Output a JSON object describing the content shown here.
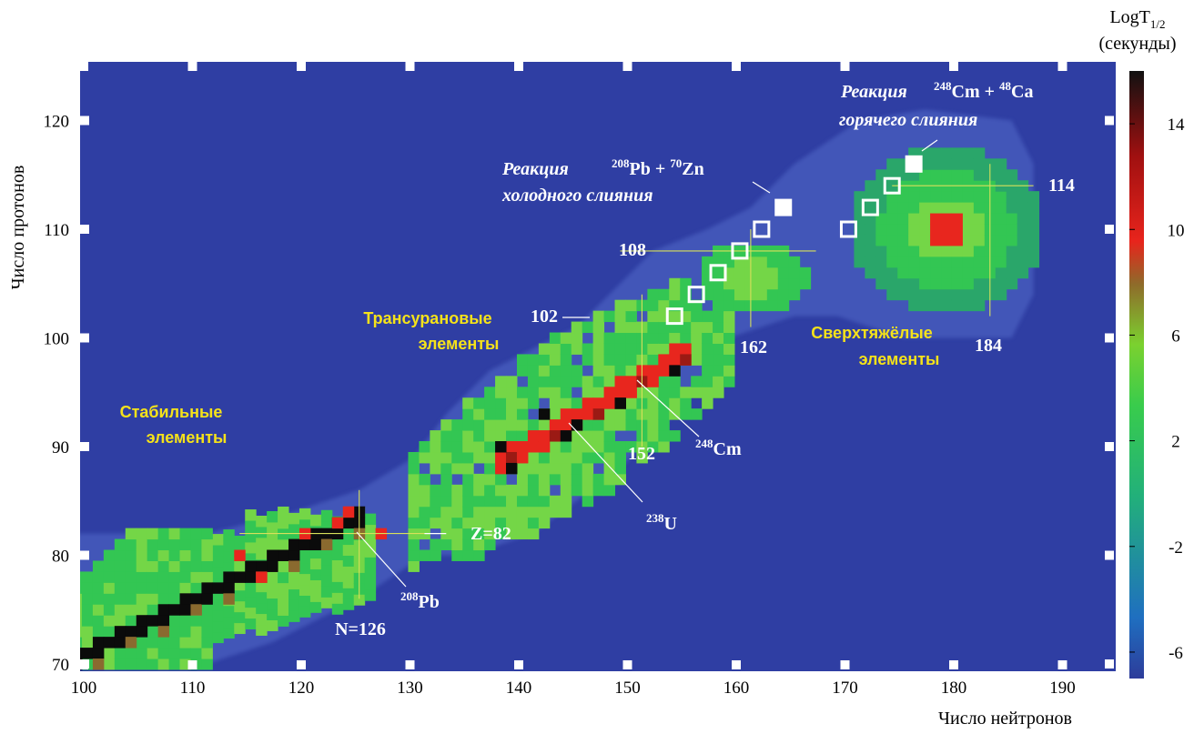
{
  "chart_data": {
    "type": "heatmap",
    "xlabel": "Число нейтронов",
    "ylabel": "Число протонов",
    "xlim": [
      100,
      196
    ],
    "ylim": [
      70,
      125
    ],
    "x_ticks": [
      "100",
      "110",
      "120",
      "130",
      "140",
      "150",
      "160",
      "170",
      "180",
      "190"
    ],
    "y_ticks": [
      "70",
      "80",
      "90",
      "100",
      "110",
      "120"
    ],
    "colorbar": {
      "title_main": "LogT",
      "title_sub": "1/2",
      "title_unit": "(секунды)",
      "range": [
        -7,
        16
      ],
      "ticks": [
        "-6",
        "-2",
        "2",
        "6",
        "10",
        "14"
      ],
      "colors": [
        "#2d3c9a",
        "#1f7fc4",
        "#22b07a",
        "#39cc4c",
        "#7bd12f",
        "#8f6a2a",
        "#e8241c",
        "#a01010",
        "#111111"
      ]
    },
    "colors": {
      "background": "#2f3ea3",
      "halo": "#4f66c6",
      "green": "#33c653",
      "light_green": "#74d647",
      "red": "#e8261e",
      "dark_red": "#9b1a14",
      "black": "#0b0b0b",
      "brown": "#8a6a2f",
      "annotation_yellow": "#f5e21a"
    },
    "regions": [
      {
        "name": "stable_band",
        "type": "band",
        "from": [
          100,
          72
        ],
        "to": [
          126,
          82
        ],
        "value": "2 to 6"
      },
      {
        "name": "transuranic_band",
        "type": "band",
        "from": [
          133,
          84
        ],
        "to": [
          160,
          104
        ],
        "value": "2 to 6"
      },
      {
        "name": "deformed_island",
        "type": "ellipse",
        "center": [
          162,
          106
        ],
        "value": "3 to 6"
      },
      {
        "name": "superheavy_island",
        "type": "ellipse",
        "center": [
          180,
          110
        ],
        "value": "4 to 10"
      }
    ],
    "cold_fusion_points": [
      [
        155,
        102
      ],
      [
        157,
        104
      ],
      [
        159,
        106
      ],
      [
        161,
        108
      ],
      [
        163,
        110
      ],
      [
        165,
        112
      ]
    ],
    "hot_fusion_points": [
      [
        171,
        110
      ],
      [
        173,
        112
      ],
      [
        175,
        114
      ],
      [
        177,
        116
      ]
    ],
    "magic_lines": [
      {
        "label": "Z=82",
        "axis": "z",
        "value": 82
      },
      {
        "label": "N=126",
        "axis": "n",
        "value": 126
      },
      {
        "label": "152",
        "axis": "n",
        "value": 152
      },
      {
        "label": "162",
        "axis": "n",
        "value": 162
      },
      {
        "label": "184",
        "axis": "n",
        "value": 184
      },
      {
        "label": "108",
        "axis": "z",
        "value": 108
      },
      {
        "label": "114",
        "axis": "z",
        "value": 114
      }
    ],
    "annotations": {
      "stable": [
        "Стабильные",
        "элементы"
      ],
      "transuranic": [
        "Трансурановые",
        "элементы"
      ],
      "superheavy": [
        "Сверхтяжёлые",
        "элементы"
      ],
      "label_102": "102",
      "cold_reaction_1": "Реакция",
      "cold_reaction_2": "холодного слияния",
      "cold_formula": {
        "a_mass": "208",
        "a_sym": "Pb",
        "plus": " + ",
        "b_mass": "70",
        "b_sym": "Zn"
      },
      "hot_reaction_1": "Реакция",
      "hot_reaction_2": "горячего слияния",
      "hot_formula": {
        "a_mass": "248",
        "a_sym": "Cm",
        "plus": " + ",
        "b_mass": "48",
        "b_sym": "Ca"
      },
      "pb208": {
        "mass": "208",
        "sym": "Pb"
      },
      "u238": {
        "mass": "238",
        "sym": "U"
      },
      "cm248": {
        "mass": "248",
        "sym": "Cm"
      }
    }
  }
}
